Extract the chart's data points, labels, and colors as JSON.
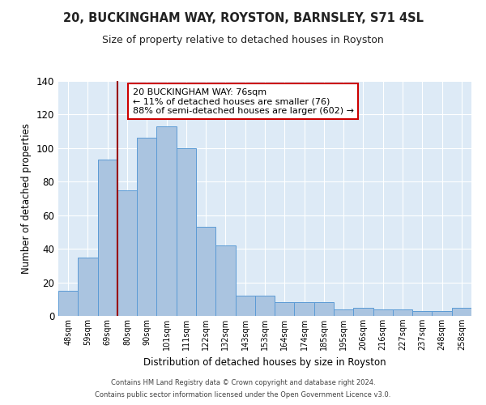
{
  "title": "20, BUCKINGHAM WAY, ROYSTON, BARNSLEY, S71 4SL",
  "subtitle": "Size of property relative to detached houses in Royston",
  "xlabel": "Distribution of detached houses by size in Royston",
  "ylabel": "Number of detached properties",
  "bar_labels": [
    "48sqm",
    "59sqm",
    "69sqm",
    "80sqm",
    "90sqm",
    "101sqm",
    "111sqm",
    "122sqm",
    "132sqm",
    "143sqm",
    "153sqm",
    "164sqm",
    "174sqm",
    "185sqm",
    "195sqm",
    "206sqm",
    "216sqm",
    "227sqm",
    "237sqm",
    "248sqm",
    "258sqm"
  ],
  "bar_values": [
    15,
    35,
    93,
    75,
    106,
    113,
    100,
    53,
    42,
    12,
    12,
    8,
    8,
    8,
    4,
    5,
    4,
    4,
    3,
    3,
    5
  ],
  "bar_color": "#aac4e0",
  "bar_edge_color": "#5b9bd5",
  "background_color": "#ffffff",
  "plot_bg_color": "#ddeaf6",
  "grid_color": "#ffffff",
  "vline_x_index": 3,
  "vline_color": "#990000",
  "annotation_text": "20 BUCKINGHAM WAY: 76sqm\n← 11% of detached houses are smaller (76)\n88% of semi-detached houses are larger (602) →",
  "annotation_box_color": "#ffffff",
  "annotation_box_edge": "#cc0000",
  "ylim": [
    0,
    140
  ],
  "yticks": [
    0,
    20,
    40,
    60,
    80,
    100,
    120,
    140
  ],
  "footer_line1": "Contains HM Land Registry data © Crown copyright and database right 2024.",
  "footer_line2": "Contains public sector information licensed under the Open Government Licence v3.0."
}
